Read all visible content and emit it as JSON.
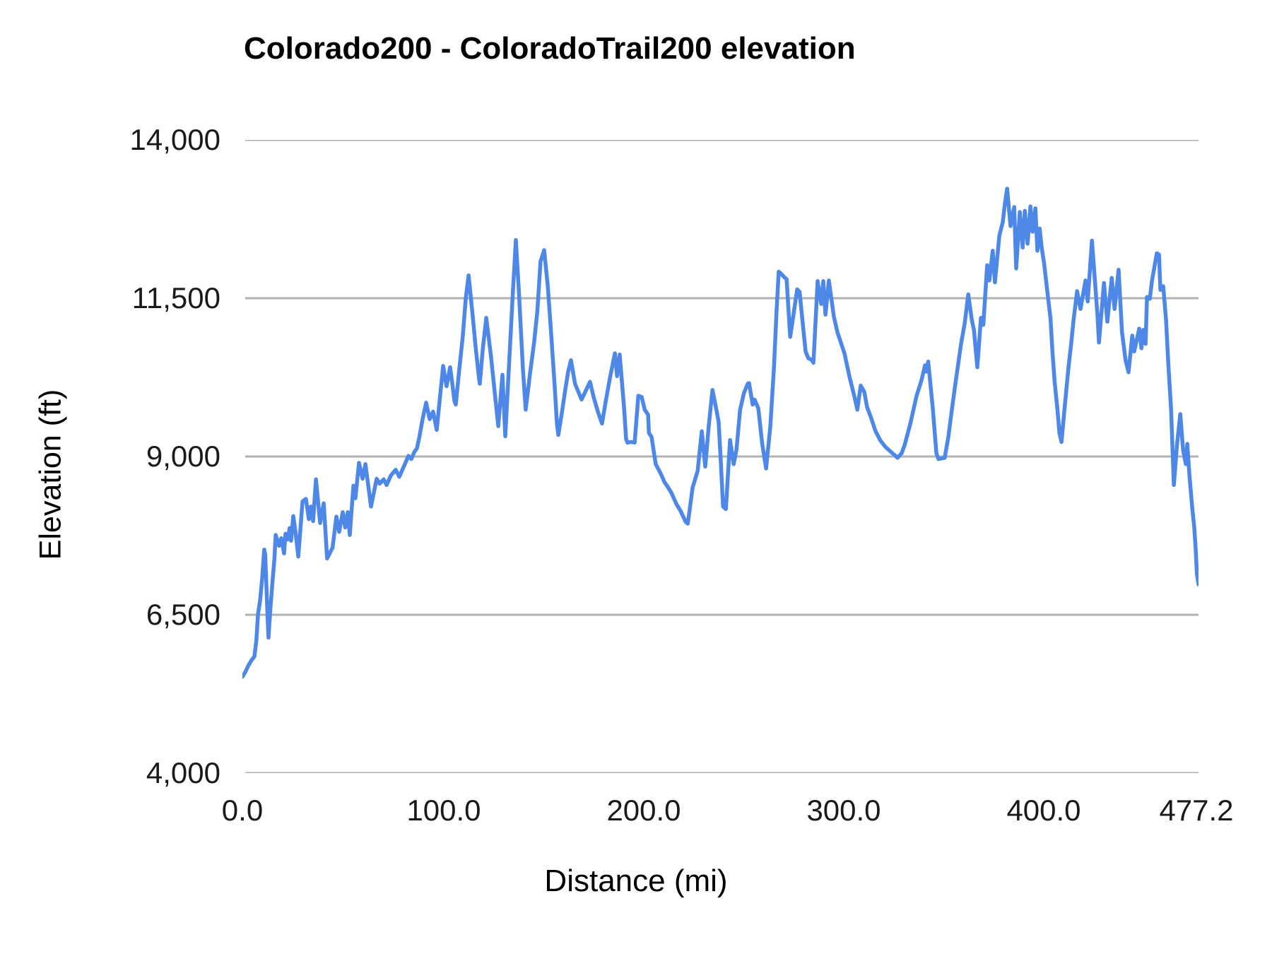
{
  "title": "Colorado200 - ColoradoTrail200 elevation",
  "colors": {
    "line": "#4d88e8",
    "grid": "#b2b2b2",
    "text": "#1a1a1a"
  },
  "chart_data": {
    "type": "line",
    "title": "Colorado200 - ColoradoTrail200 elevation",
    "xlabel": "Distance (mi)",
    "ylabel": "Elevation (ft)",
    "xlim": [
      0,
      477.2
    ],
    "ylim": [
      4000,
      14000
    ],
    "grid": "horizontal",
    "legend": "none",
    "x_ticks": [
      0,
      100,
      200,
      300,
      400,
      477.2
    ],
    "x_tick_labels": [
      "0.0",
      "100.0",
      "200.0",
      "300.0",
      "400.0",
      "477.2"
    ],
    "y_ticks": [
      14000,
      11500,
      9000,
      6500,
      4000
    ],
    "y_tick_labels": [
      "14,000",
      "11,500",
      "9,000",
      "6,500",
      "4,000"
    ],
    "series": [
      {
        "name": "elevation",
        "color": "#4d88e8",
        "points": [
          [
            0,
            5520
          ],
          [
            1.5,
            5600
          ],
          [
            3,
            5700
          ],
          [
            4.5,
            5780
          ],
          [
            6,
            5840
          ],
          [
            7,
            6100
          ],
          [
            7.8,
            6510
          ],
          [
            8.8,
            6720
          ],
          [
            9.8,
            7050
          ],
          [
            10.9,
            7530
          ],
          [
            11.4,
            7450
          ],
          [
            12,
            6950
          ],
          [
            12.6,
            6450
          ],
          [
            13,
            6140
          ],
          [
            14,
            6610
          ],
          [
            15,
            7010
          ],
          [
            16,
            7400
          ],
          [
            16.6,
            7760
          ],
          [
            18.3,
            7590
          ],
          [
            19.4,
            7710
          ],
          [
            20.8,
            7470
          ],
          [
            21.5,
            7780
          ],
          [
            22.6,
            7690
          ],
          [
            23.6,
            7870
          ],
          [
            24.3,
            7670
          ],
          [
            25.4,
            8060
          ],
          [
            26.5,
            7810
          ],
          [
            27.9,
            7420
          ],
          [
            30,
            8290
          ],
          [
            31.7,
            8330
          ],
          [
            33.2,
            8010
          ],
          [
            34.2,
            8210
          ],
          [
            35.3,
            7980
          ],
          [
            36.7,
            8640
          ],
          [
            38.8,
            7950
          ],
          [
            40.6,
            8260
          ],
          [
            42.3,
            7390
          ],
          [
            45,
            7560
          ],
          [
            46.9,
            8050
          ],
          [
            48.3,
            7810
          ],
          [
            50.1,
            8120
          ],
          [
            51.3,
            7880
          ],
          [
            52.6,
            8120
          ],
          [
            53.6,
            7760
          ],
          [
            55.4,
            8540
          ],
          [
            56.4,
            8340
          ],
          [
            58.2,
            8900
          ],
          [
            60,
            8650
          ],
          [
            61.4,
            8880
          ],
          [
            64.2,
            8210
          ],
          [
            67,
            8650
          ],
          [
            68.5,
            8570
          ],
          [
            70.5,
            8640
          ],
          [
            72,
            8550
          ],
          [
            74.1,
            8700
          ],
          [
            76.5,
            8790
          ],
          [
            78.3,
            8680
          ],
          [
            81.1,
            8880
          ],
          [
            82.9,
            9010
          ],
          [
            84.3,
            8960
          ],
          [
            85.8,
            9070
          ],
          [
            87.1,
            9130
          ],
          [
            88.2,
            9290
          ],
          [
            90,
            9600
          ],
          [
            91.7,
            9850
          ],
          [
            93.5,
            9590
          ],
          [
            95.2,
            9710
          ],
          [
            97,
            9420
          ],
          [
            98.5,
            9900
          ],
          [
            100.2,
            10430
          ],
          [
            101.9,
            10110
          ],
          [
            103.7,
            10410
          ],
          [
            104.8,
            10150
          ],
          [
            105.8,
            9880
          ],
          [
            106.5,
            9820
          ],
          [
            108,
            10300
          ],
          [
            110,
            10900
          ],
          [
            111.5,
            11500
          ],
          [
            112.9,
            11860
          ],
          [
            115,
            11200
          ],
          [
            116.5,
            10700
          ],
          [
            118.2,
            10210
          ],
          [
            118.5,
            10150
          ],
          [
            120,
            10700
          ],
          [
            121.7,
            11190
          ],
          [
            124,
            10600
          ],
          [
            126,
            10000
          ],
          [
            127.7,
            9480
          ],
          [
            129.8,
            10290
          ],
          [
            131.2,
            9320
          ],
          [
            133,
            10400
          ],
          [
            135,
            11600
          ],
          [
            136.5,
            12420
          ],
          [
            138,
            11600
          ],
          [
            140,
            10400
          ],
          [
            141.4,
            9740
          ],
          [
            143.5,
            10300
          ],
          [
            145.6,
            10800
          ],
          [
            147.2,
            11300
          ],
          [
            148.8,
            12080
          ],
          [
            150.6,
            12260
          ],
          [
            152.4,
            11700
          ],
          [
            154.2,
            10900
          ],
          [
            155.9,
            10100
          ],
          [
            157,
            9520
          ],
          [
            157.7,
            9340
          ],
          [
            159.5,
            9700
          ],
          [
            161.2,
            10060
          ],
          [
            162.6,
            10340
          ],
          [
            164,
            10520
          ],
          [
            166,
            10150
          ],
          [
            169.3,
            9900
          ],
          [
            173.5,
            10180
          ],
          [
            175.3,
            9940
          ],
          [
            177.5,
            9700
          ],
          [
            179.5,
            9520
          ],
          [
            181.5,
            9900
          ],
          [
            183.5,
            10250
          ],
          [
            185.9,
            10630
          ],
          [
            187,
            10270
          ],
          [
            188.3,
            10610
          ],
          [
            190.5,
            9770
          ],
          [
            191.5,
            9280
          ],
          [
            192.2,
            9220
          ],
          [
            194,
            9230
          ],
          [
            195.8,
            9220
          ],
          [
            197.6,
            9960
          ],
          [
            199.3,
            9940
          ],
          [
            200.8,
            9740
          ],
          [
            202.5,
            9660
          ],
          [
            202.9,
            9370
          ],
          [
            204.2,
            9310
          ],
          [
            206.3,
            8880
          ],
          [
            208.8,
            8730
          ],
          [
            210.6,
            8600
          ],
          [
            212.3,
            8520
          ],
          [
            214.1,
            8430
          ],
          [
            216.6,
            8250
          ],
          [
            218.7,
            8140
          ],
          [
            221.2,
            7970
          ],
          [
            222.3,
            7940
          ],
          [
            224.7,
            8510
          ],
          [
            227.2,
            8770
          ],
          [
            229.3,
            9400
          ],
          [
            231,
            8840
          ],
          [
            232.8,
            9500
          ],
          [
            234.6,
            10050
          ],
          [
            236.2,
            9800
          ],
          [
            237.7,
            9550
          ],
          [
            238.8,
            8900
          ],
          [
            239.9,
            8210
          ],
          [
            241.3,
            8170
          ],
          [
            243.4,
            9260
          ],
          [
            245.2,
            8880
          ],
          [
            246.6,
            9110
          ],
          [
            248.4,
            9740
          ],
          [
            250.3,
            10000
          ],
          [
            252.2,
            10150
          ],
          [
            252.9,
            10160
          ],
          [
            254.7,
            9820
          ],
          [
            255.6,
            9900
          ],
          [
            257.5,
            9760
          ],
          [
            259.4,
            9210
          ],
          [
            261.4,
            8810
          ],
          [
            263.5,
            9480
          ],
          [
            265.3,
            10400
          ],
          [
            266.6,
            11300
          ],
          [
            267.7,
            11920
          ],
          [
            268.8,
            11890
          ],
          [
            270.2,
            11840
          ],
          [
            271.6,
            11800
          ],
          [
            273.4,
            10890
          ],
          [
            275.1,
            11250
          ],
          [
            276.9,
            11640
          ],
          [
            278.1,
            11600
          ],
          [
            280,
            11000
          ],
          [
            281.1,
            10660
          ],
          [
            282.5,
            10550
          ],
          [
            284,
            10530
          ],
          [
            285,
            10480
          ],
          [
            287.1,
            11770
          ],
          [
            288.9,
            11410
          ],
          [
            289.9,
            11770
          ],
          [
            291,
            11240
          ],
          [
            292.7,
            11780
          ],
          [
            295.2,
            11210
          ],
          [
            297,
            10960
          ],
          [
            300.5,
            10630
          ],
          [
            303,
            10260
          ],
          [
            305.5,
            9940
          ],
          [
            306.9,
            9740
          ],
          [
            308.6,
            10120
          ],
          [
            310.4,
            10020
          ],
          [
            311.8,
            9780
          ],
          [
            313.6,
            9630
          ],
          [
            316,
            9400
          ],
          [
            318.5,
            9250
          ],
          [
            321,
            9150
          ],
          [
            324.5,
            9050
          ],
          [
            327,
            8980
          ],
          [
            329,
            9050
          ],
          [
            330.5,
            9180
          ],
          [
            333.3,
            9510
          ],
          [
            336.5,
            9960
          ],
          [
            338.9,
            10200
          ],
          [
            340.7,
            10440
          ],
          [
            341.4,
            10340
          ],
          [
            342.3,
            10500
          ],
          [
            344.6,
            9760
          ],
          [
            346.4,
            9050
          ],
          [
            347.4,
            8960
          ],
          [
            349,
            8970
          ],
          [
            350.5,
            8980
          ],
          [
            352.3,
            9300
          ],
          [
            354.1,
            9740
          ],
          [
            356.1,
            10200
          ],
          [
            358.7,
            10780
          ],
          [
            360.5,
            11100
          ],
          [
            362.3,
            11560
          ],
          [
            364.1,
            11150
          ],
          [
            365.1,
            11000
          ],
          [
            366.8,
            10410
          ],
          [
            368.6,
            11190
          ],
          [
            369.8,
            11080
          ],
          [
            371.7,
            12020
          ],
          [
            372.8,
            11780
          ],
          [
            374.5,
            12250
          ],
          [
            375.6,
            11750
          ],
          [
            377.8,
            12490
          ],
          [
            379.5,
            12700
          ],
          [
            380.6,
            13000
          ],
          [
            381.7,
            13230
          ],
          [
            383.4,
            12640
          ],
          [
            385.2,
            12940
          ],
          [
            386.2,
            11970
          ],
          [
            388,
            12860
          ],
          [
            389.4,
            12300
          ],
          [
            390.5,
            12880
          ],
          [
            391.9,
            12360
          ],
          [
            393.3,
            12950
          ],
          [
            394.4,
            12550
          ],
          [
            395.8,
            12920
          ],
          [
            396.8,
            12250
          ],
          [
            397.9,
            12600
          ],
          [
            399,
            12280
          ],
          [
            400.1,
            12060
          ],
          [
            401.5,
            11670
          ],
          [
            403.3,
            11190
          ],
          [
            404.3,
            10660
          ],
          [
            405.4,
            10180
          ],
          [
            406.8,
            9740
          ],
          [
            407.8,
            9370
          ],
          [
            408.8,
            9230
          ],
          [
            410.5,
            9810
          ],
          [
            412.3,
            10410
          ],
          [
            413.8,
            10820
          ],
          [
            414.8,
            11150
          ],
          [
            416.6,
            11610
          ],
          [
            418.3,
            11330
          ],
          [
            420.8,
            11780
          ],
          [
            421.9,
            11450
          ],
          [
            424,
            12410
          ],
          [
            426.8,
            11220
          ],
          [
            427.5,
            10800
          ],
          [
            430,
            11740
          ],
          [
            431.7,
            11130
          ],
          [
            433.9,
            11820
          ],
          [
            435.3,
            11330
          ],
          [
            437.3,
            11950
          ],
          [
            439,
            10970
          ],
          [
            440.8,
            10520
          ],
          [
            442.3,
            10330
          ],
          [
            444.1,
            10910
          ],
          [
            445.1,
            10660
          ],
          [
            447.6,
            11020
          ],
          [
            448.7,
            10710
          ],
          [
            449.7,
            11000
          ],
          [
            450.8,
            10780
          ],
          [
            451.5,
            11520
          ],
          [
            452.9,
            11490
          ],
          [
            454,
            11780
          ],
          [
            456.4,
            12210
          ],
          [
            457.5,
            12190
          ],
          [
            458.2,
            11630
          ],
          [
            459.6,
            11690
          ],
          [
            461,
            11150
          ],
          [
            462.1,
            10480
          ],
          [
            463.5,
            9740
          ],
          [
            464.3,
            9070
          ],
          [
            464.9,
            8550
          ],
          [
            466.5,
            9200
          ],
          [
            468.1,
            9670
          ],
          [
            469.5,
            9100
          ],
          [
            470.9,
            8880
          ],
          [
            471.6,
            9200
          ],
          [
            472.7,
            8700
          ],
          [
            474.1,
            8180
          ],
          [
            475.1,
            7880
          ],
          [
            475.8,
            7540
          ],
          [
            476.4,
            7150
          ],
          [
            477.2,
            6980
          ]
        ]
      }
    ]
  }
}
